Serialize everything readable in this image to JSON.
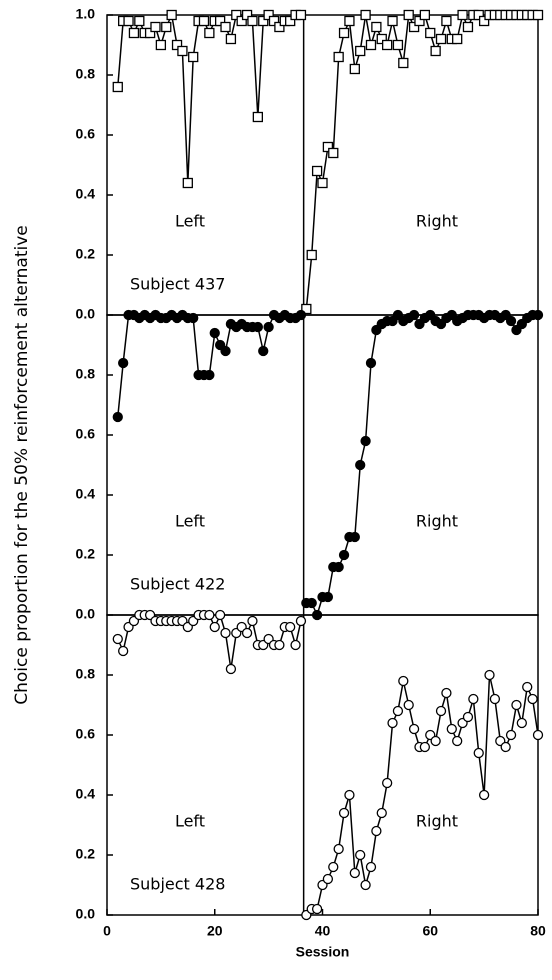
{
  "y_label": "Choice proportion for the 50% reinforcement alternative",
  "chart_data": [
    {
      "type": "line",
      "marker": "square-open",
      "annotations": [
        "Left",
        "Right",
        "Subject 437"
      ],
      "phase_change": 36.5,
      "xlim": [
        0,
        80
      ],
      "ylim": [
        0,
        1
      ],
      "yticks": [
        {
          "value": 0,
          "label": "0.0"
        },
        0.2,
        0.4,
        0.6,
        0.8,
        {
          "value": 1,
          "label": "1.0"
        }
      ],
      "x": [
        2,
        3,
        4,
        5,
        6,
        7,
        8,
        9,
        10,
        11,
        12,
        13,
        14,
        15,
        16,
        17,
        18,
        19,
        20,
        21,
        22,
        23,
        24,
        25,
        26,
        27,
        28,
        29,
        30,
        31,
        32,
        33,
        34,
        35,
        36,
        37,
        38,
        39,
        40,
        41,
        42,
        43,
        44,
        45,
        46,
        47,
        48,
        49,
        50,
        51,
        52,
        53,
        54,
        55,
        56,
        57,
        58,
        59,
        60,
        61,
        62,
        63,
        64,
        65,
        66,
        67,
        68,
        69,
        70,
        71,
        72,
        73,
        74,
        75,
        76,
        77,
        78,
        79,
        80
      ],
      "series": [
        {
          "color": "#000",
          "values": [
            0.76,
            0.98,
            0.98,
            0.94,
            0.98,
            0.94,
            0.94,
            0.96,
            0.9,
            0.96,
            1.0,
            0.9,
            0.88,
            0.44,
            0.86,
            0.98,
            0.98,
            0.94,
            0.98,
            0.98,
            0.96,
            0.92,
            1.0,
            0.98,
            1.0,
            0.98,
            0.66,
            0.98,
            1.0,
            0.98,
            0.96,
            0.98,
            0.98,
            1.0,
            1.0,
            0.02,
            0.2,
            0.48,
            0.44,
            0.56,
            0.54,
            0.86,
            0.94,
            0.98,
            0.82,
            0.88,
            1.0,
            0.9,
            0.96,
            0.92,
            0.9,
            0.98,
            0.9,
            0.84,
            1.0,
            0.96,
            0.98,
            1.0,
            0.94,
            0.88,
            0.92,
            0.98,
            0.92,
            0.92,
            1.0,
            0.96,
            1.0,
            1.0,
            0.98,
            1.0,
            1.0,
            1.0,
            1.0,
            1.0,
            1.0,
            1.0,
            1.0,
            1.0,
            1.0
          ]
        }
      ]
    },
    {
      "type": "line",
      "marker": "circle-filled",
      "annotations": [
        "Left",
        "Right",
        "Subject 422"
      ],
      "phase_change": 36.5,
      "xlim": [
        0,
        80
      ],
      "ylim": [
        0,
        1
      ],
      "yticks": [
        {
          "value": 0,
          "label": "0.0"
        },
        0.2,
        0.4,
        0.6,
        0.8
      ],
      "x": [
        2,
        3,
        4,
        5,
        6,
        7,
        8,
        9,
        10,
        11,
        12,
        13,
        14,
        15,
        16,
        17,
        18,
        19,
        20,
        21,
        22,
        23,
        24,
        25,
        26,
        27,
        28,
        29,
        30,
        31,
        32,
        33,
        34,
        35,
        36,
        37,
        38,
        39,
        40,
        41,
        42,
        43,
        44,
        45,
        46,
        47,
        48,
        49,
        50,
        51,
        52,
        53,
        54,
        55,
        56,
        57,
        58,
        59,
        60,
        61,
        62,
        63,
        64,
        65,
        66,
        67,
        68,
        69,
        70,
        71,
        72,
        73,
        74,
        75,
        76,
        77,
        78,
        79,
        80
      ],
      "series": [
        {
          "color": "#000",
          "values": [
            0.66,
            0.84,
            1.0,
            1.0,
            0.99,
            1.0,
            0.99,
            1.0,
            0.99,
            0.99,
            1.0,
            0.99,
            1.0,
            0.99,
            0.99,
            0.8,
            0.8,
            0.8,
            0.94,
            0.9,
            0.88,
            0.97,
            0.96,
            0.97,
            0.96,
            0.96,
            0.96,
            0.88,
            0.96,
            1.0,
            0.99,
            1.0,
            0.99,
            0.99,
            1.0,
            0.04,
            0.04,
            0.0,
            0.06,
            0.06,
            0.16,
            0.16,
            0.2,
            0.26,
            0.26,
            0.5,
            0.58,
            0.84,
            0.95,
            0.97,
            0.98,
            0.98,
            1.0,
            0.98,
            0.99,
            1.0,
            0.97,
            0.99,
            1.0,
            0.98,
            0.97,
            0.99,
            1.0,
            0.98,
            0.99,
            1.0,
            1.0,
            1.0,
            0.99,
            1.0,
            1.0,
            0.99,
            1.0,
            0.98,
            0.95,
            0.97,
            0.99,
            1.0,
            1.0
          ]
        }
      ]
    },
    {
      "type": "line",
      "marker": "circle-open",
      "annotations": [
        "Left",
        "Right",
        "Subject 428"
      ],
      "phase_change": 36.5,
      "xlim": [
        0,
        80
      ],
      "ylim": [
        0,
        1
      ],
      "x_label": "Session",
      "xticks": [
        0,
        20,
        40,
        60,
        80
      ],
      "yticks": [
        {
          "value": 0,
          "label": "0.0"
        },
        0.2,
        0.4,
        0.6,
        0.8
      ],
      "x": [
        2,
        3,
        4,
        5,
        6,
        7,
        8,
        9,
        10,
        11,
        12,
        13,
        14,
        15,
        16,
        17,
        18,
        19,
        20,
        21,
        22,
        23,
        24,
        25,
        26,
        27,
        28,
        29,
        30,
        31,
        32,
        33,
        34,
        35,
        36,
        37,
        38,
        39,
        40,
        41,
        42,
        43,
        44,
        45,
        46,
        47,
        48,
        49,
        50,
        51,
        52,
        53,
        54,
        55,
        56,
        57,
        58,
        59,
        60,
        61,
        62,
        63,
        64,
        65,
        66,
        67,
        68,
        69,
        70,
        71,
        72,
        73,
        74,
        75,
        76,
        77,
        78,
        79,
        80
      ],
      "series": [
        {
          "color": "#000",
          "values": [
            0.92,
            0.88,
            0.96,
            0.98,
            1.0,
            1.0,
            1.0,
            0.98,
            0.98,
            0.98,
            0.98,
            0.98,
            0.98,
            0.96,
            0.98,
            1.0,
            1.0,
            1.0,
            0.96,
            1.0,
            0.94,
            0.82,
            0.94,
            0.96,
            0.94,
            0.98,
            0.9,
            0.9,
            0.92,
            0.9,
            0.9,
            0.96,
            0.96,
            0.9,
            0.98,
            0.0,
            0.02,
            0.02,
            0.1,
            0.12,
            0.16,
            0.22,
            0.34,
            0.4,
            0.14,
            0.2,
            0.1,
            0.16,
            0.28,
            0.34,
            0.44,
            0.64,
            0.68,
            0.78,
            0.7,
            0.62,
            0.56,
            0.56,
            0.6,
            0.58,
            0.68,
            0.74,
            0.62,
            0.58,
            0.64,
            0.66,
            0.72,
            0.54,
            0.4,
            0.8,
            0.72,
            0.58,
            0.56,
            0.6,
            0.7,
            0.64,
            0.76,
            0.72,
            0.6
          ]
        }
      ]
    }
  ]
}
